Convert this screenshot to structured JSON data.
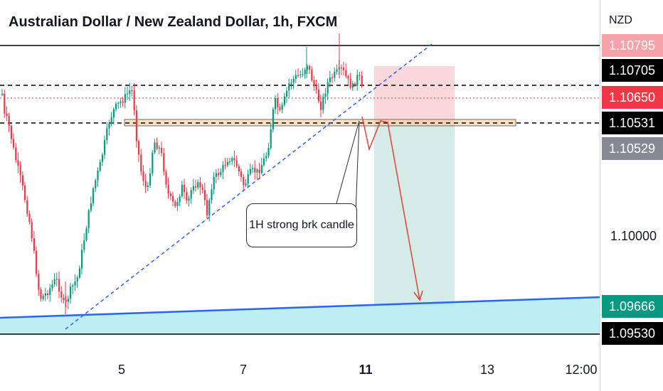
{
  "header": {
    "title": "Australian Dollar / New Zealand Dollar, 1h, FXCM",
    "currency": "NZD"
  },
  "annotation": {
    "callout_text": "1H strong brk candle"
  },
  "price_axis": {
    "labels": [
      {
        "text": "1.10795",
        "bg": "#f5a3a8",
        "fg": "#ffffff",
        "kind": "ask"
      },
      {
        "text": "1.10705",
        "bg": "#000000",
        "fg": "#ffffff",
        "kind": "level"
      },
      {
        "text": "1.10650",
        "bg": "#f23645",
        "fg": "#ffffff",
        "kind": "last"
      },
      {
        "text": "1.10531",
        "bg": "#000000",
        "fg": "#ffffff",
        "kind": "level"
      },
      {
        "text": "1.10529",
        "bg": "#868993",
        "fg": "#ffffff",
        "kind": "prev"
      },
      {
        "text": "1.09666",
        "bg": "#089981",
        "fg": "#ffffff",
        "kind": "target"
      },
      {
        "text": "1.09530",
        "bg": "#000000",
        "fg": "#ffffff",
        "kind": "support"
      }
    ],
    "plain_tick": "1.10000"
  },
  "time_axis": {
    "ticks": [
      {
        "text": "5",
        "bold": false
      },
      {
        "text": "7",
        "bold": false
      },
      {
        "text": "11",
        "bold": true
      },
      {
        "text": "13",
        "bold": false
      },
      {
        "text": "12:00",
        "bold": false
      }
    ]
  },
  "colors": {
    "up": "#089981",
    "down": "#f23645",
    "trendline": "#2962ff",
    "support_line": "#2962ff",
    "support_zone": "#b2ebf2",
    "stop_zone": "#f8d0d3",
    "target_zone": "#cfe9e6",
    "breakout_zone": "#ffcc99",
    "arrow": "#e0423d"
  },
  "chart_data": {
    "type": "candlestick",
    "symbol": "Australian Dollar / New Zealand Dollar",
    "interval": "1h",
    "exchange": "FXCM",
    "currency": "NZD",
    "x_ticks": [
      "5",
      "7",
      "11",
      "13",
      "12:00"
    ],
    "horizontal_levels": [
      1.10795,
      1.10705,
      1.1065,
      1.10531,
      1.0953
    ],
    "target_level": 1.09666,
    "last_price": 1.1065,
    "trade_setup": {
      "direction": "short",
      "entry": 1.10531,
      "stop": 1.10795,
      "target": 1.09666
    },
    "annotation": "1H strong brk candle"
  }
}
